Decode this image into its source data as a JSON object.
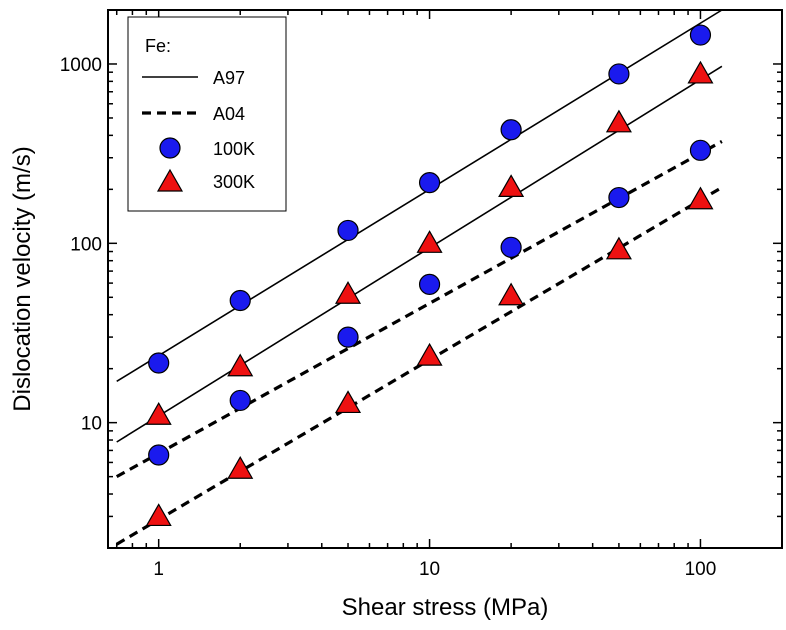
{
  "chart_data": {
    "type": "scatter",
    "xscale": "log",
    "yscale": "log",
    "xlabel": "Shear stress (MPa)",
    "ylabel": "Dislocation velocity (m/s)",
    "xlim": [
      0.65,
      200
    ],
    "ylim": [
      2,
      2000
    ],
    "x_ticks": [
      "1",
      "10",
      "100"
    ],
    "y_ticks": [
      "10",
      "100",
      "1000"
    ],
    "grid": false,
    "legend_position": "top-left",
    "legend_title": "Fe:",
    "series": [
      {
        "name": "A97",
        "kind": "line",
        "dash": "solid",
        "x": [
          0.7,
          120
        ],
        "y": [
          17,
          2000
        ]
      },
      {
        "name": "A97",
        "kind": "line",
        "dash": "solid",
        "x": [
          0.7,
          120
        ],
        "y": [
          7.8,
          970
        ]
      },
      {
        "name": "A04",
        "kind": "line",
        "dash": "dashed",
        "x": [
          0.7,
          120
        ],
        "y": [
          5.0,
          370
        ]
      },
      {
        "name": "A04",
        "kind": "line",
        "dash": "dashed",
        "x": [
          0.7,
          120
        ],
        "y": [
          2.1,
          205
        ]
      },
      {
        "name": "100K",
        "kind": "scatter",
        "marker": "circle",
        "color": "#1a1aee",
        "x": [
          1,
          2,
          5,
          10,
          20,
          50,
          100,
          1,
          2,
          5,
          10,
          20,
          50,
          100
        ],
        "y": [
          21.5,
          48,
          118,
          218,
          430,
          880,
          1450,
          6.6,
          13.3,
          30,
          59,
          95,
          180,
          330
        ]
      },
      {
        "name": "300K",
        "kind": "scatter",
        "marker": "triangle",
        "color": "#ee1111",
        "x": [
          1,
          2,
          5,
          10,
          20,
          50,
          100,
          1,
          2,
          5,
          10,
          20,
          50,
          100
        ],
        "y": [
          11,
          20.5,
          52,
          100,
          205,
          470,
          880,
          3.0,
          5.5,
          12.8,
          23.5,
          51,
          92,
          175
        ]
      }
    ],
    "legend": [
      {
        "label": "A97",
        "symbol": "solid-line"
      },
      {
        "label": "A04",
        "symbol": "dashed-line"
      },
      {
        "label": "100K",
        "symbol": "blue-circle"
      },
      {
        "label": "300K",
        "symbol": "red-triangle"
      }
    ]
  }
}
